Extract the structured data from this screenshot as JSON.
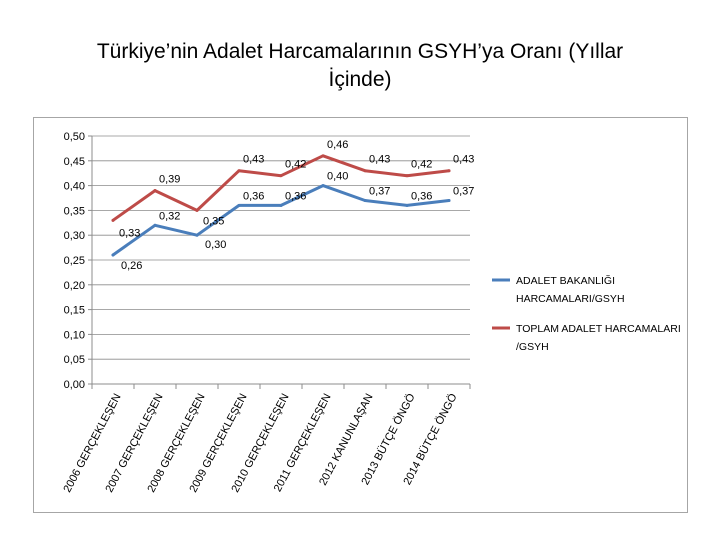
{
  "slide": {
    "title_line1": "Türkiye’nin Adalet Harcamalarının GSYH’ya Oranı (Yıllar",
    "title_line2": "İçinde)"
  },
  "chart_data": {
    "type": "line",
    "title": "",
    "xlabel": "",
    "ylabel": "",
    "ylim": [
      0,
      0.5
    ],
    "yticks": [
      0.0,
      0.05,
      0.1,
      0.15,
      0.2,
      0.25,
      0.3,
      0.35,
      0.4,
      0.45,
      0.5
    ],
    "ytick_labels": [
      "0,00",
      "0,05",
      "0,10",
      "0,15",
      "0,20",
      "0,25",
      "0,30",
      "0,35",
      "0,40",
      "0,45",
      "0,50"
    ],
    "grid": true,
    "legend_position": "right",
    "categories": [
      "2006 GERÇEKLEŞEN",
      "2007 GERÇEKLEŞEN",
      "2008 GERÇEKLEŞEN",
      "2009 GERÇEKLEŞEN",
      "2010 GERÇEKLEŞEN",
      "2011  GERÇEKLEŞEN",
      "2012  KANUNLAŞAN",
      "2013  BÜTÇE ÖNGÖ",
      "2014  BÜTÇE ÖNGÖ"
    ],
    "series": [
      {
        "name": "ADALET BAKANLIĞI HARCAMALARI/GSYH",
        "legend_line1": "ADALET BAKANLIĞI",
        "legend_line2": "HARCAMALARI/GSYH",
        "color": "#4a7ebb",
        "values": [
          0.26,
          0.32,
          0.3,
          0.36,
          0.36,
          0.4,
          0.37,
          0.36,
          0.37
        ],
        "labels": [
          "0,26",
          "0,32",
          "0,30",
          "0,36",
          "0,36",
          "0,40",
          "0,37",
          "0,36",
          "0,37"
        ]
      },
      {
        "name": "TOPLAM ADALET HARCAMALARI /GSYH",
        "legend_line1": "TOPLAM ADALET HARCAMALARI",
        "legend_line2": "/GSYH",
        "color": "#be4b48",
        "values": [
          0.33,
          0.39,
          0.35,
          0.43,
          0.42,
          0.46,
          0.43,
          0.42,
          0.43
        ],
        "labels": [
          "0,33",
          "0,39",
          "0,35",
          "0,43",
          "0,42",
          "0,46",
          "0,43",
          "0,42",
          "0,43"
        ]
      }
    ]
  }
}
